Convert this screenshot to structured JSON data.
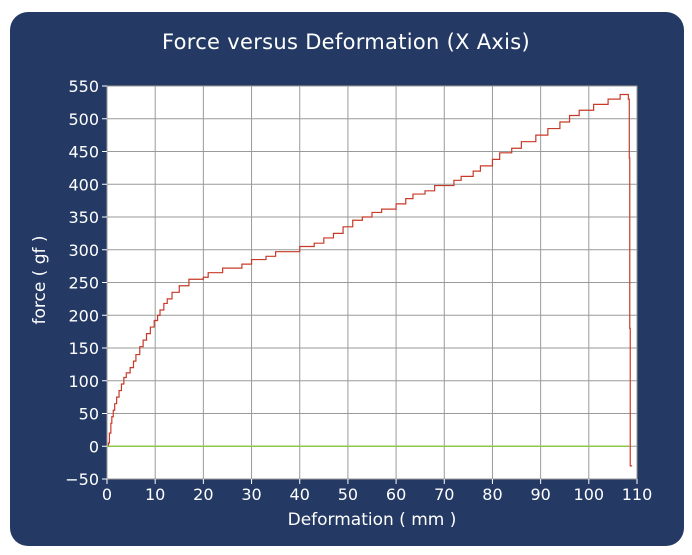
{
  "chart_data": {
    "type": "line",
    "title": "Force versus Deformation (X Axis)",
    "xlabel": "Deformation ( mm )",
    "ylabel": "force ( gf )",
    "xlim": [
      0,
      110
    ],
    "ylim": [
      -50,
      550
    ],
    "xticks": [
      0,
      10,
      20,
      30,
      40,
      50,
      60,
      70,
      80,
      90,
      100,
      110
    ],
    "yticks": [
      -50,
      0,
      50,
      100,
      150,
      200,
      250,
      300,
      350,
      400,
      450,
      500,
      550
    ],
    "grid": true,
    "colors": {
      "panel_background": "#243a64",
      "plot_background": "#ffffff",
      "grid": "#9a9a9a",
      "series": "#c83a28",
      "baseline": "#8cc84b"
    },
    "series": [
      {
        "style": "step",
        "points": [
          [
            0,
            0
          ],
          [
            0.3,
            5
          ],
          [
            0.5,
            20
          ],
          [
            0.8,
            35
          ],
          [
            1.0,
            45
          ],
          [
            1.3,
            55
          ],
          [
            1.6,
            65
          ],
          [
            2.0,
            75
          ],
          [
            2.5,
            85
          ],
          [
            3.0,
            95
          ],
          [
            3.5,
            105
          ],
          [
            4.0,
            112
          ],
          [
            4.8,
            120
          ],
          [
            5.5,
            130
          ],
          [
            6.0,
            140
          ],
          [
            6.8,
            152
          ],
          [
            7.5,
            162
          ],
          [
            8.2,
            172
          ],
          [
            9.0,
            182
          ],
          [
            9.8,
            192
          ],
          [
            10.5,
            200
          ],
          [
            11.0,
            208
          ],
          [
            11.8,
            218
          ],
          [
            12.5,
            225
          ],
          [
            13.5,
            235
          ],
          [
            15.0,
            245
          ],
          [
            17.0,
            255
          ],
          [
            20.0,
            258
          ],
          [
            21.0,
            265
          ],
          [
            24.0,
            272
          ],
          [
            28.0,
            278
          ],
          [
            30.0,
            285
          ],
          [
            33.0,
            290
          ],
          [
            35.0,
            297
          ],
          [
            40.0,
            305
          ],
          [
            43.0,
            310
          ],
          [
            45.0,
            318
          ],
          [
            47.0,
            325
          ],
          [
            49.0,
            335
          ],
          [
            51.0,
            345
          ],
          [
            53.0,
            350
          ],
          [
            55.0,
            357
          ],
          [
            57.0,
            362
          ],
          [
            60.0,
            370
          ],
          [
            62.0,
            378
          ],
          [
            63.5,
            385
          ],
          [
            66.0,
            390
          ],
          [
            68.0,
            398
          ],
          [
            72.0,
            406
          ],
          [
            73.5,
            412
          ],
          [
            76.0,
            420
          ],
          [
            77.5,
            428
          ],
          [
            80.0,
            438
          ],
          [
            81.5,
            448
          ],
          [
            84.0,
            455
          ],
          [
            86.0,
            465
          ],
          [
            89.0,
            475
          ],
          [
            91.5,
            485
          ],
          [
            94.0,
            495
          ],
          [
            96.0,
            505
          ],
          [
            98.0,
            513
          ],
          [
            101.0,
            522
          ],
          [
            104.0,
            530
          ],
          [
            106.5,
            537
          ],
          [
            108.0,
            537
          ],
          [
            108.2,
            530
          ],
          [
            108.4,
            440
          ],
          [
            108.5,
            180
          ],
          [
            108.6,
            -30
          ],
          [
            109.0,
            -30
          ]
        ]
      },
      {
        "style": "line",
        "points": [
          [
            0,
            0
          ],
          [
            108.3,
            0
          ]
        ]
      }
    ]
  }
}
